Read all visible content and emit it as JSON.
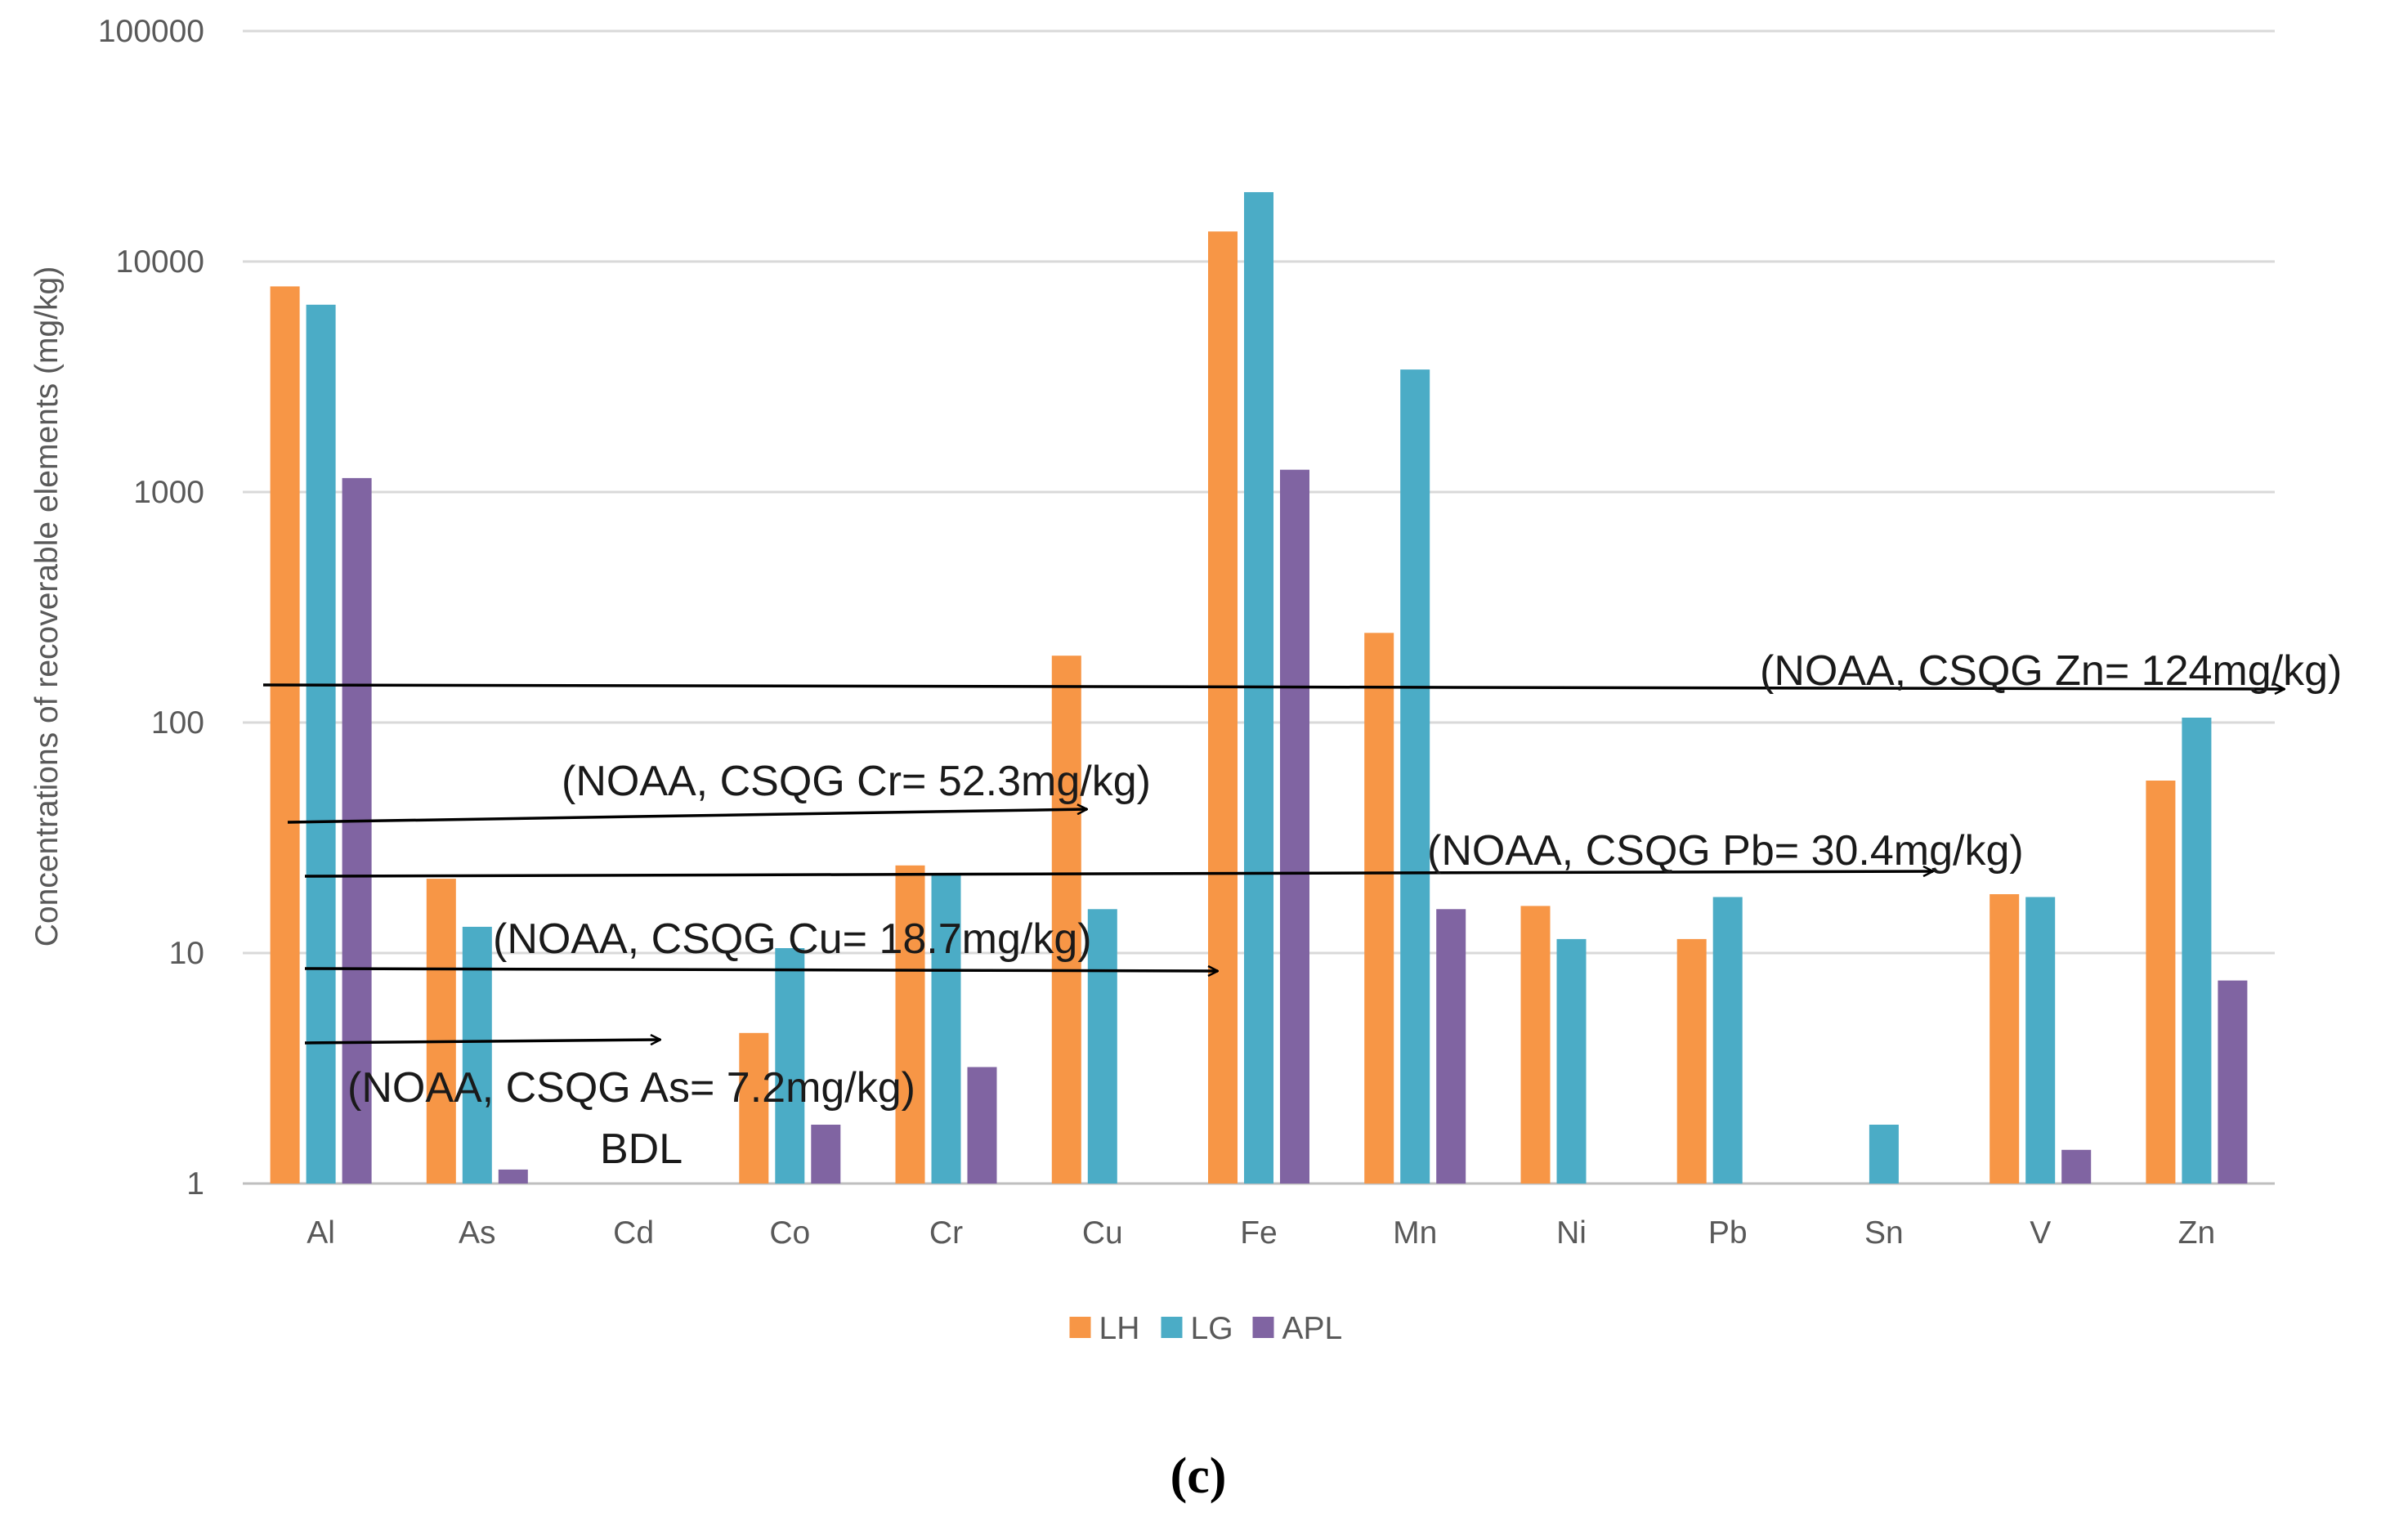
{
  "chart_data": {
    "type": "bar",
    "scale": "log",
    "ylabel": "Concentrations of recoverable elements (mg/kg)",
    "ylim": [
      1,
      100000
    ],
    "yticks": [
      "1",
      "10",
      "100",
      "1000",
      "10000",
      "100000"
    ],
    "categories": [
      "Al",
      "As",
      "Cd",
      "Co",
      "Cr",
      "Cu",
      "Fe",
      "Mn",
      "Ni",
      "Pb",
      "Sn",
      "V",
      "Zn"
    ],
    "series": [
      {
        "name": "LH",
        "color": "#F79646",
        "values": [
          7800,
          21,
          null,
          4.5,
          24,
          195,
          13500,
          245,
          16,
          11.5,
          null,
          18,
          56
        ]
      },
      {
        "name": "LG",
        "color": "#4BACC6",
        "values": [
          6500,
          13,
          null,
          10.5,
          22,
          15.5,
          20000,
          3400,
          11.5,
          17.5,
          1.8,
          17.5,
          105
        ]
      },
      {
        "name": "APL",
        "color": "#8064A2",
        "values": [
          1150,
          1.15,
          null,
          1.8,
          3.2,
          null,
          1250,
          15.5,
          null,
          null,
          null,
          1.4,
          7.6
        ]
      }
    ],
    "grid": true,
    "legend": "bottom-center",
    "annotations": [
      {
        "label": "(NOAA, CSQG Zn= 124mg/kg)"
      },
      {
        "label": "(NOAA, CSQG  Cr= 52.3mg/kg)"
      },
      {
        "label": "(NOAA, CSQG Pb= 30.4mg/kg)"
      },
      {
        "label": "(NOAA, CSQG Cu= 18.7mg/kg)"
      },
      {
        "label": "(NOAA, CSQG As= 7.2mg/kg)"
      },
      {
        "label": "BDL"
      }
    ],
    "panel_label": "(c)"
  }
}
